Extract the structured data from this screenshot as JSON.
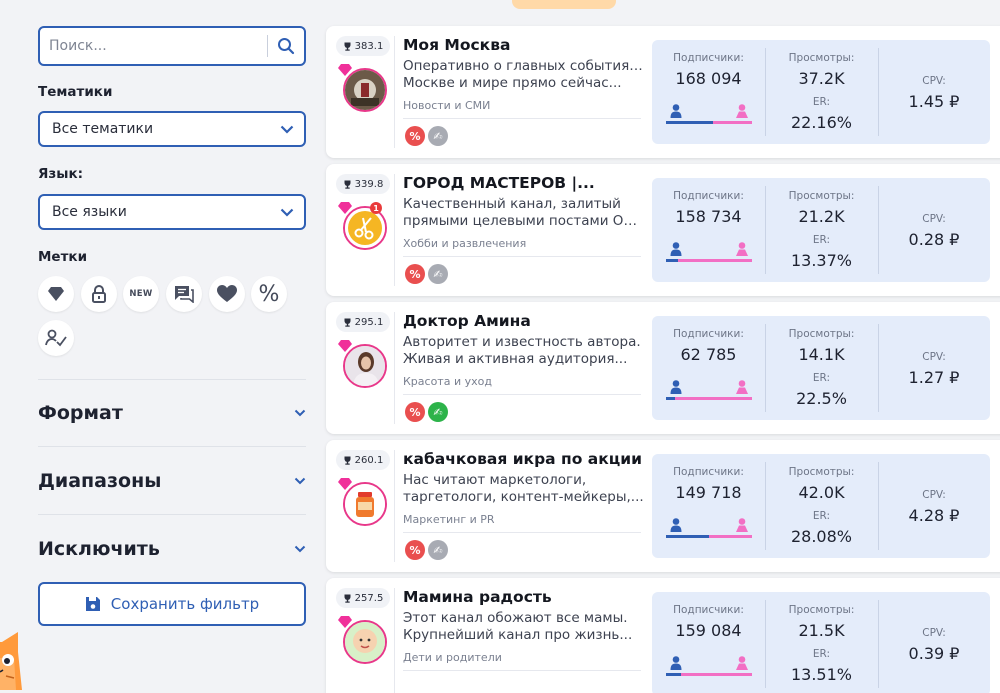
{
  "sidebar": {
    "search_placeholder": "Поиск...",
    "topics_label": "Тематики",
    "topics_value": "Все тематики",
    "language_label": "Язык:",
    "language_value": "Все языки",
    "tags_label": "Метки",
    "tags": [
      {
        "icon": "diamond-icon"
      },
      {
        "icon": "lock-icon"
      },
      {
        "icon": "new-icon",
        "text": "NEW"
      },
      {
        "icon": "chat-icon"
      },
      {
        "icon": "heart-icon"
      },
      {
        "icon": "percent-icon",
        "text": "%"
      },
      {
        "icon": "signature-icon"
      }
    ],
    "sections": [
      "Формат",
      "Диапазоны",
      "Исключить"
    ],
    "save_label": "Сохранить фильтр"
  },
  "channels": [
    {
      "rank": "383.1",
      "name": "Моя Москва",
      "desc1": "Оперативно о главных событиях в",
      "desc2": "Москве и мире прямо сейчас...",
      "category": "Новости и СМИ",
      "subscribers_label": "Подписчики:",
      "subscribers": "168 094",
      "views_label": "Просмотры:",
      "views": "37.2K",
      "er_label": "ER:",
      "er": "22.16%",
      "cpv_label": "CPV:",
      "cpv": "1.45 ₽",
      "male_share": 0.55,
      "badge": "",
      "verified": false,
      "avatar_color": "#5a4a3a"
    },
    {
      "rank": "339.8",
      "name": "ГОРОД МАСТЕРОВ |...",
      "desc1": "Качественный канал, залитый",
      "desc2": "прямыми целевыми постами Оди...",
      "category": "Хобби и развлечения",
      "subscribers_label": "Подписчики:",
      "subscribers": "158 734",
      "views_label": "Просмотры:",
      "views": "21.2K",
      "er_label": "ER:",
      "er": "13.37%",
      "cpv_label": "CPV:",
      "cpv": "0.28 ₽",
      "male_share": 0.14,
      "badge": "1",
      "verified": false,
      "avatar_color": "#f5b623"
    },
    {
      "rank": "295.1",
      "name": "Доктор Амина",
      "desc1": "Авторитет и известность автора.",
      "desc2": "Живая и активная аудитория...",
      "category": "Красота и уход",
      "subscribers_label": "Подписчики:",
      "subscribers": "62 785",
      "views_label": "Просмотры:",
      "views": "14.1K",
      "er_label": "ER:",
      "er": "22.5%",
      "cpv_label": "CPV:",
      "cpv": "1.27 ₽",
      "male_share": 0.1,
      "badge": "",
      "verified": true,
      "avatar_color": "#c9a89a"
    },
    {
      "rank": "260.1",
      "name": "кабачковая икра по акции",
      "desc1": "Нас читают маркетологи,",
      "desc2": "таргетологи, контент-мейкеры,...",
      "category": "Маркетинг и PR",
      "subscribers_label": "Подписчики:",
      "subscribers": "149 718",
      "views_label": "Просмотры:",
      "views": "42.0K",
      "er_label": "ER:",
      "er": "28.08%",
      "cpv_label": "CPV:",
      "cpv": "4.28 ₽",
      "male_share": 0.5,
      "badge": "",
      "verified": false,
      "avatar_color": "#e8602c"
    },
    {
      "rank": "257.5",
      "name": "Мамина радость",
      "desc1": "Этот канал обожают все мамы.",
      "desc2": "Крупнейший канал про жизнь...",
      "category": "Дети и родители",
      "subscribers_label": "Подписчики:",
      "subscribers": "159 084",
      "views_label": "Просмотры:",
      "views": "21.5K",
      "er_label": "ER:",
      "er": "13.51%",
      "cpv_label": "CPV:",
      "cpv": "0.39 ₽",
      "male_share": 0.18,
      "badge": "",
      "verified": false,
      "avatar_color": "#f2c9a0"
    }
  ],
  "colors": {
    "accent": "#2f5fb4",
    "pink": "#e8388a",
    "stats_bg": "#e4ecfa",
    "red_badge": "#e94f4f",
    "green_badge": "#2db34a"
  }
}
